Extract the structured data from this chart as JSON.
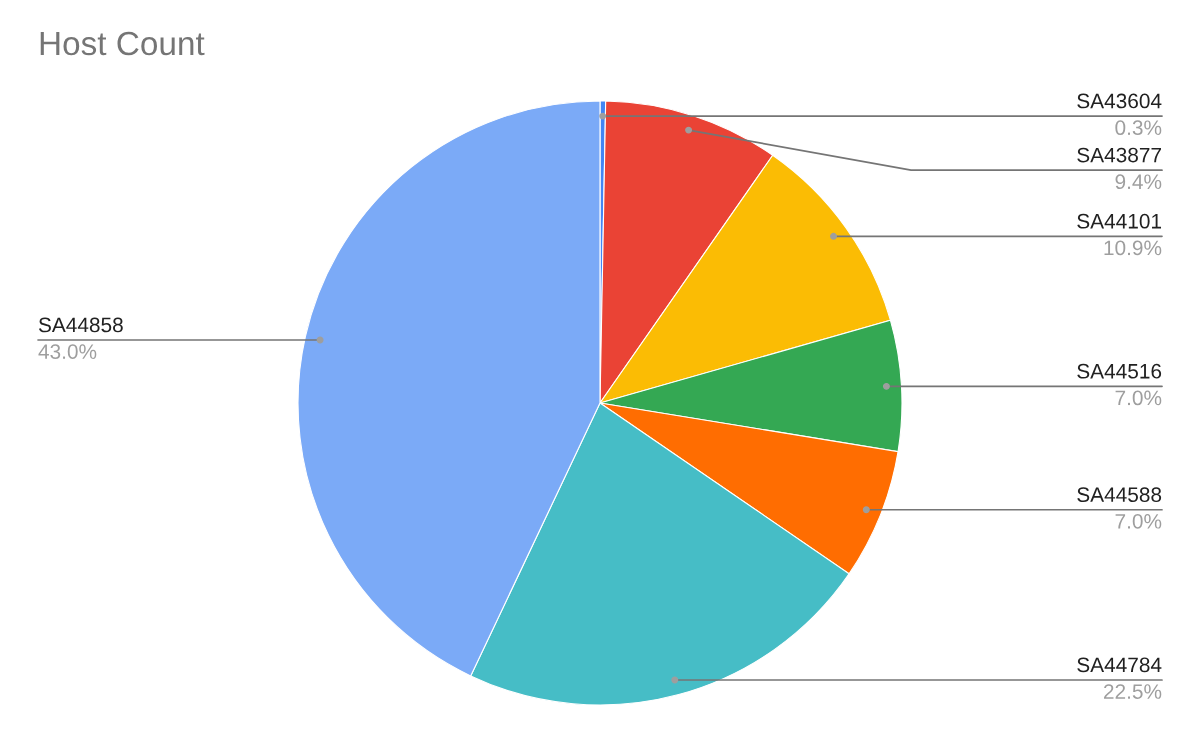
{
  "chart_data": {
    "type": "pie",
    "title": "Host Count",
    "categories": [
      "SA43604",
      "SA43877",
      "SA44101",
      "SA44516",
      "SA44588",
      "SA44784",
      "SA44858"
    ],
    "values": [
      0.3,
      9.4,
      10.9,
      7.0,
      7.0,
      22.5,
      43.0
    ],
    "value_labels": [
      "0.3%",
      "9.4%",
      "10.9%",
      "7.0%",
      "7.0%",
      "22.5%",
      "43.0%"
    ],
    "colors": [
      "#4285f4",
      "#ea4335",
      "#fbbc04",
      "#34a853",
      "#ff6d01",
      "#46bdc6",
      "#7baaf7"
    ],
    "legend": false
  }
}
